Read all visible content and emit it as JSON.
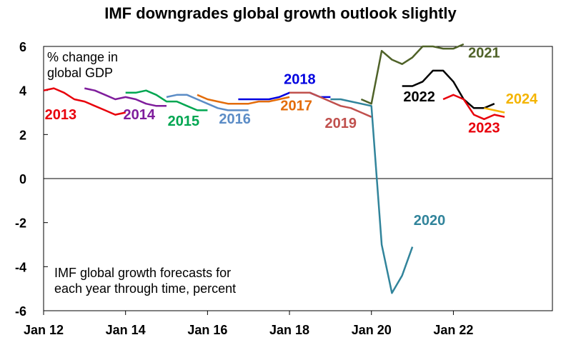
{
  "chart_data": {
    "type": "line",
    "title": "IMF downgrades global growth outlook slightly",
    "ylabel_lines": [
      "% change in",
      "global GDP"
    ],
    "annotation_lines": [
      "IMF global growth forecasts for",
      "each year through time, percent"
    ],
    "xlim": [
      "2012-01",
      "2024-06"
    ],
    "ylim": [
      -6,
      6
    ],
    "yticks": [
      "-6",
      "-4",
      "-2",
      "0",
      "2",
      "4",
      "6"
    ],
    "xticks": [
      {
        "label": "Jan 12",
        "date": "2012-01"
      },
      {
        "label": "Jan 14",
        "date": "2014-01"
      },
      {
        "label": "Jan 16",
        "date": "2016-01"
      },
      {
        "label": "Jan 18",
        "date": "2018-01"
      },
      {
        "label": "Jan 20",
        "date": "2020-01"
      },
      {
        "label": "Jan 22",
        "date": "2022-01"
      }
    ],
    "grid": false,
    "zero_line": true,
    "series": [
      {
        "name": "2013",
        "color": "#e8000b",
        "x": [
          "2012-01",
          "2012-04",
          "2012-07",
          "2012-10",
          "2013-01",
          "2013-04",
          "2013-07",
          "2013-10",
          "2014-01"
        ],
        "y": [
          4.0,
          4.1,
          3.9,
          3.6,
          3.5,
          3.3,
          3.1,
          2.9,
          3.0
        ]
      },
      {
        "name": "2014",
        "color": "#7f1d9c",
        "x": [
          "2013-01",
          "2013-04",
          "2013-07",
          "2013-10",
          "2014-01",
          "2014-04",
          "2014-07",
          "2014-10",
          "2015-01"
        ],
        "y": [
          4.1,
          4.0,
          3.8,
          3.6,
          3.7,
          3.6,
          3.4,
          3.3,
          3.3
        ]
      },
      {
        "name": "2015",
        "color": "#00a651",
        "x": [
          "2014-01",
          "2014-04",
          "2014-07",
          "2014-10",
          "2015-01",
          "2015-04",
          "2015-07",
          "2015-10",
          "2016-01"
        ],
        "y": [
          3.9,
          3.9,
          4.0,
          3.8,
          3.5,
          3.5,
          3.3,
          3.1,
          3.1
        ]
      },
      {
        "name": "2016",
        "color": "#5b8cc6",
        "x": [
          "2015-01",
          "2015-04",
          "2015-07",
          "2015-10",
          "2016-01",
          "2016-04",
          "2016-07",
          "2016-10",
          "2017-01"
        ],
        "y": [
          3.7,
          3.8,
          3.8,
          3.6,
          3.4,
          3.2,
          3.1,
          3.1,
          3.1
        ]
      },
      {
        "name": "2017",
        "color": "#e36c09",
        "x": [
          "2015-10",
          "2016-01",
          "2016-04",
          "2016-07",
          "2016-10",
          "2017-01",
          "2017-04",
          "2017-07",
          "2017-10",
          "2018-01"
        ],
        "y": [
          3.8,
          3.6,
          3.5,
          3.4,
          3.4,
          3.4,
          3.5,
          3.5,
          3.6,
          3.7
        ]
      },
      {
        "name": "2018",
        "color": "#0000e0",
        "x": [
          "2016-10",
          "2017-01",
          "2017-04",
          "2017-07",
          "2017-10",
          "2018-01",
          "2018-04",
          "2018-07",
          "2018-10",
          "2019-01"
        ],
        "y": [
          3.6,
          3.6,
          3.6,
          3.6,
          3.7,
          3.9,
          3.9,
          3.9,
          3.7,
          3.7
        ]
      },
      {
        "name": "2019",
        "color": "#c0504d",
        "x": [
          "2018-01",
          "2018-04",
          "2018-07",
          "2018-10",
          "2019-01",
          "2019-04",
          "2019-07",
          "2019-10",
          "2020-01"
        ],
        "y": [
          3.9,
          3.9,
          3.9,
          3.7,
          3.5,
          3.3,
          3.2,
          3.0,
          2.8
        ]
      },
      {
        "name": "2020",
        "color": "#31849b",
        "x": [
          "2019-01",
          "2019-04",
          "2019-07",
          "2019-10",
          "2020-01",
          "2020-04",
          "2020-07",
          "2020-10",
          "2021-01"
        ],
        "y": [
          3.6,
          3.6,
          3.5,
          3.4,
          3.3,
          -3.0,
          -5.2,
          -4.4,
          -3.1
        ]
      },
      {
        "name": "2021",
        "color": "#4f6228",
        "x": [
          "2019-10",
          "2020-01",
          "2020-04",
          "2020-07",
          "2020-10",
          "2021-01",
          "2021-04",
          "2021-07",
          "2021-10",
          "2022-01",
          "2022-04"
        ],
        "y": [
          3.6,
          3.4,
          5.8,
          5.4,
          5.2,
          5.5,
          6.0,
          6.0,
          5.9,
          5.9,
          6.1
        ]
      },
      {
        "name": "2022",
        "color": "#000000",
        "x": [
          "2020-10",
          "2021-01",
          "2021-04",
          "2021-07",
          "2021-10",
          "2022-01",
          "2022-04",
          "2022-07",
          "2022-10",
          "2023-01"
        ],
        "y": [
          4.2,
          4.2,
          4.4,
          4.9,
          4.9,
          4.4,
          3.6,
          3.2,
          3.2,
          3.4
        ]
      },
      {
        "name": "2023",
        "color": "#e8000b",
        "x": [
          "2021-10",
          "2022-01",
          "2022-04",
          "2022-07",
          "2022-10",
          "2023-01",
          "2023-04"
        ],
        "y": [
          3.6,
          3.8,
          3.6,
          2.9,
          2.7,
          2.9,
          2.8
        ]
      },
      {
        "name": "2024",
        "color": "#f4b400",
        "x": [
          "2022-10",
          "2023-01",
          "2023-04"
        ],
        "y": [
          3.2,
          3.1,
          3.0
        ]
      }
    ],
    "labels": [
      {
        "text": "2013",
        "series": "2013",
        "color": "#e8000b",
        "at": [
          "2012-06",
          2.7
        ]
      },
      {
        "text": "2014",
        "series": "2014",
        "color": "#7f1d9c",
        "at": [
          "2014-05",
          2.7
        ]
      },
      {
        "text": "2015",
        "series": "2015",
        "color": "#00a651",
        "at": [
          "2015-06",
          2.4
        ]
      },
      {
        "text": "2016",
        "series": "2016",
        "color": "#5b8cc6",
        "at": [
          "2016-09",
          2.5
        ]
      },
      {
        "text": "2017",
        "series": "2017",
        "color": "#e36c09",
        "at": [
          "2018-03",
          3.1
        ]
      },
      {
        "text": "2018",
        "series": "2018",
        "color": "#0000e0",
        "at": [
          "2018-04",
          4.3
        ]
      },
      {
        "text": "2019",
        "series": "2019",
        "color": "#c0504d",
        "at": [
          "2019-04",
          2.3
        ]
      },
      {
        "text": "2020",
        "series": "2020",
        "color": "#31849b",
        "at": [
          "2021-06",
          -2.1
        ]
      },
      {
        "text": "2021",
        "series": "2021",
        "color": "#4f6228",
        "at": [
          "2022-10",
          5.5
        ]
      },
      {
        "text": "2022",
        "series": "2022",
        "color": "#000000",
        "at": [
          "2021-03",
          3.5
        ]
      },
      {
        "text": "2023",
        "series": "2023",
        "color": "#e8000b",
        "at": [
          "2022-10",
          2.1
        ]
      },
      {
        "text": "2024",
        "series": "2024",
        "color": "#f4b400",
        "at": [
          "2023-09",
          3.4
        ]
      }
    ]
  }
}
